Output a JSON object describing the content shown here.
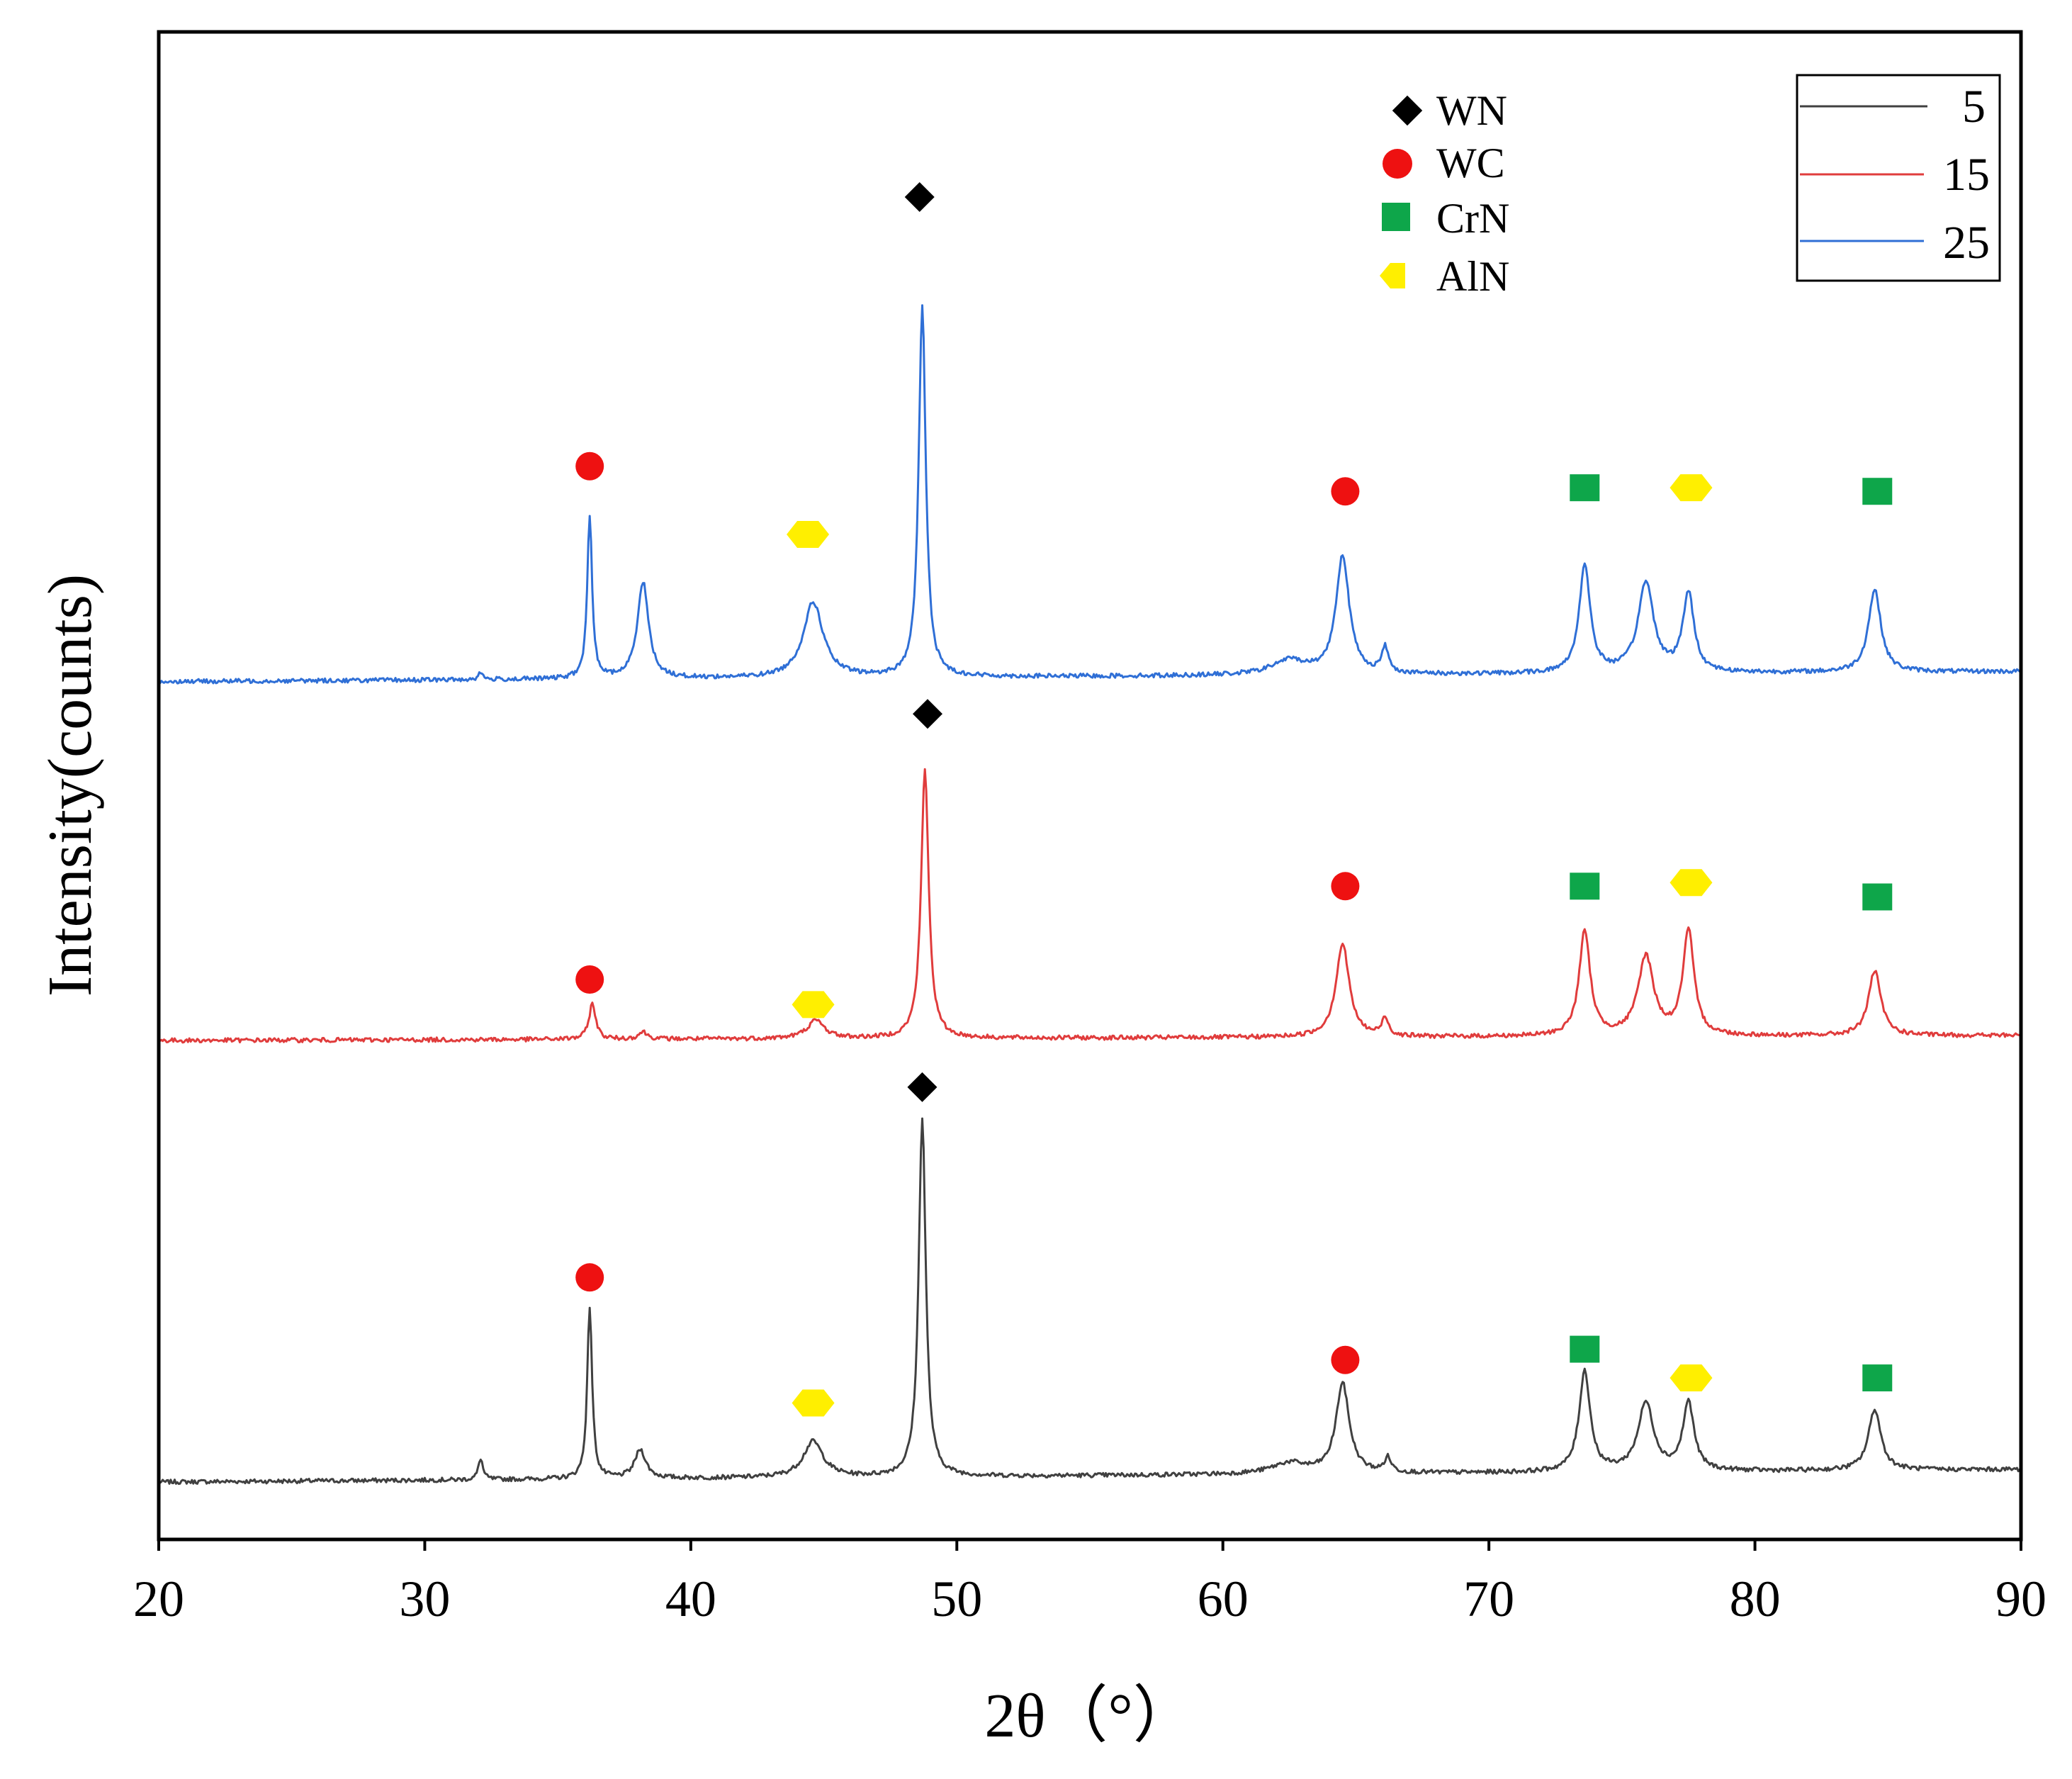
{
  "chart_data": {
    "type": "line",
    "title": "",
    "xlabel": "2θ（°）",
    "ylabel": "Intensity(counts)",
    "xlim": [
      20,
      90
    ],
    "xticks": [
      20,
      30,
      40,
      50,
      60,
      70,
      80,
      90
    ],
    "yticks_shown": false,
    "grid": false,
    "legend_position": "top-right",
    "series": [
      {
        "name": "5",
        "color": "#404040",
        "baseline": 0.16,
        "slope": 0.0005,
        "noise": 0.006,
        "peaks": [
          {
            "x": 32.1,
            "h": 0.06,
            "w": 0.1
          },
          {
            "x": 36.2,
            "h": 0.48,
            "w": 0.11
          },
          {
            "x": 38.1,
            "h": 0.08,
            "w": 0.25
          },
          {
            "x": 44.6,
            "h": 0.1,
            "w": 0.45
          },
          {
            "x": 48.7,
            "h": 1.0,
            "w": 0.16
          },
          {
            "x": 62.5,
            "h": 0.03,
            "w": 0.8
          },
          {
            "x": 64.5,
            "h": 0.25,
            "w": 0.3
          },
          {
            "x": 66.2,
            "h": 0.04,
            "w": 0.15
          },
          {
            "x": 73.6,
            "h": 0.28,
            "w": 0.25
          },
          {
            "x": 75.9,
            "h": 0.19,
            "w": 0.35
          },
          {
            "x": 77.5,
            "h": 0.19,
            "w": 0.25
          },
          {
            "x": 84.5,
            "h": 0.17,
            "w": 0.28
          }
        ]
      },
      {
        "name": "15",
        "color": "#e03c3c",
        "baseline": 1.39,
        "slope": 0.0002,
        "noise": 0.006,
        "peaks": [
          {
            "x": 36.3,
            "h": 0.1,
            "w": 0.15
          },
          {
            "x": 38.2,
            "h": 0.02,
            "w": 0.2
          },
          {
            "x": 44.7,
            "h": 0.05,
            "w": 0.4
          },
          {
            "x": 48.8,
            "h": 0.75,
            "w": 0.17
          },
          {
            "x": 64.5,
            "h": 0.26,
            "w": 0.3
          },
          {
            "x": 66.1,
            "h": 0.05,
            "w": 0.15
          },
          {
            "x": 73.6,
            "h": 0.29,
            "w": 0.25
          },
          {
            "x": 75.9,
            "h": 0.22,
            "w": 0.35
          },
          {
            "x": 77.5,
            "h": 0.29,
            "w": 0.25
          },
          {
            "x": 84.5,
            "h": 0.18,
            "w": 0.28
          }
        ]
      },
      {
        "name": "25",
        "color": "#2f6fd6",
        "baseline": 2.39,
        "slope": 0.0004,
        "noise": 0.006,
        "peaks": [
          {
            "x": 32.1,
            "h": 0.02,
            "w": 0.1
          },
          {
            "x": 36.2,
            "h": 0.45,
            "w": 0.11
          },
          {
            "x": 38.2,
            "h": 0.27,
            "w": 0.25
          },
          {
            "x": 44.6,
            "h": 0.21,
            "w": 0.45
          },
          {
            "x": 48.7,
            "h": 1.03,
            "w": 0.16
          },
          {
            "x": 62.5,
            "h": 0.04,
            "w": 0.8
          },
          {
            "x": 64.5,
            "h": 0.33,
            "w": 0.3
          },
          {
            "x": 66.1,
            "h": 0.07,
            "w": 0.15
          },
          {
            "x": 73.6,
            "h": 0.3,
            "w": 0.25
          },
          {
            "x": 75.9,
            "h": 0.25,
            "w": 0.35
          },
          {
            "x": 77.5,
            "h": 0.22,
            "w": 0.25
          },
          {
            "x": 84.5,
            "h": 0.23,
            "w": 0.28
          }
        ]
      }
    ],
    "phase_legend": [
      {
        "label": "WN",
        "marker": "diamond",
        "color": "#000000"
      },
      {
        "label": "WC",
        "marker": "circle",
        "color": "#ee1111"
      },
      {
        "label": "CrN",
        "marker": "square",
        "color": "#0ea64a"
      },
      {
        "label": "AlN",
        "marker": "hexagon",
        "color": "#ffef00"
      }
    ],
    "peak_markers": [
      {
        "series": "5",
        "phase": "WC",
        "x": 36.2,
        "y": 0.73
      },
      {
        "series": "5",
        "phase": "AlN",
        "x": 44.6,
        "y": 0.38
      },
      {
        "series": "5",
        "phase": "WN",
        "x": 48.7,
        "y": 1.26
      },
      {
        "series": "5",
        "phase": "WC",
        "x": 64.6,
        "y": 0.5
      },
      {
        "series": "5",
        "phase": "CrN",
        "x": 73.6,
        "y": 0.53
      },
      {
        "series": "5",
        "phase": "AlN",
        "x": 77.6,
        "y": 0.45
      },
      {
        "series": "5",
        "phase": "CrN",
        "x": 84.6,
        "y": 0.45
      },
      {
        "series": "15",
        "phase": "WC",
        "x": 36.2,
        "y": 1.56
      },
      {
        "series": "15",
        "phase": "AlN",
        "x": 44.6,
        "y": 1.49
      },
      {
        "series": "15",
        "phase": "WN",
        "x": 48.9,
        "y": 2.3
      },
      {
        "series": "15",
        "phase": "WC",
        "x": 64.6,
        "y": 1.82
      },
      {
        "series": "15",
        "phase": "CrN",
        "x": 73.6,
        "y": 1.82
      },
      {
        "series": "15",
        "phase": "AlN",
        "x": 77.6,
        "y": 1.83
      },
      {
        "series": "15",
        "phase": "CrN",
        "x": 84.6,
        "y": 1.79
      },
      {
        "series": "25",
        "phase": "WC",
        "x": 36.2,
        "y": 2.99
      },
      {
        "series": "25",
        "phase": "AlN",
        "x": 44.4,
        "y": 2.8
      },
      {
        "series": "25",
        "phase": "WN",
        "x": 48.6,
        "y": 3.74
      },
      {
        "series": "25",
        "phase": "WC",
        "x": 64.6,
        "y": 2.92
      },
      {
        "series": "25",
        "phase": "CrN",
        "x": 73.6,
        "y": 2.93
      },
      {
        "series": "25",
        "phase": "AlN",
        "x": 77.6,
        "y": 2.93
      },
      {
        "series": "25",
        "phase": "CrN",
        "x": 84.6,
        "y": 2.92
      }
    ]
  }
}
